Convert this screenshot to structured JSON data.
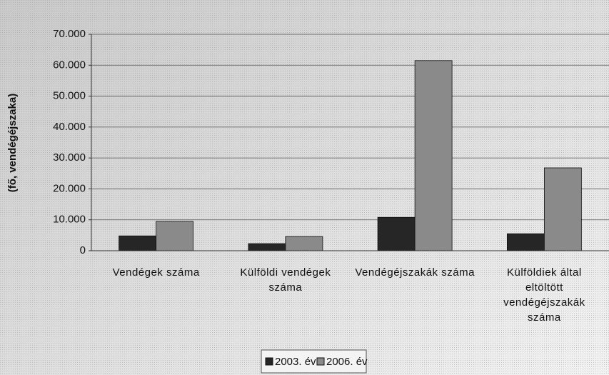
{
  "chart_data": {
    "type": "bar",
    "y_label": "(fő, vendégéjszaka)",
    "categories": [
      "Vendégek száma",
      "Külföldi vendégek száma",
      "Vendégéjszakák száma",
      "Külföldiek által eltöltött vendégéjszakák száma"
    ],
    "series": [
      {
        "name": "2003. év",
        "color": "#262626",
        "values": [
          4800,
          2300,
          10800,
          5500
        ]
      },
      {
        "name": "2006. év",
        "color": "#8a8a8a",
        "values": [
          9500,
          4600,
          61500,
          26800
        ]
      }
    ],
    "ylim": [
      0,
      70000
    ],
    "yticks": [
      0,
      {
        "value": 10000,
        "label": "10.000"
      },
      {
        "value": 20000,
        "label": "20.000"
      },
      {
        "value": 30000,
        "label": "30.000"
      },
      {
        "value": 40000,
        "label": "40.000"
      },
      {
        "value": 50000,
        "label": "50.000"
      },
      {
        "value": 60000,
        "label": "60.000"
      },
      {
        "value": 70000,
        "label": "70.000"
      }
    ],
    "grid": true,
    "legend": "bottom"
  }
}
